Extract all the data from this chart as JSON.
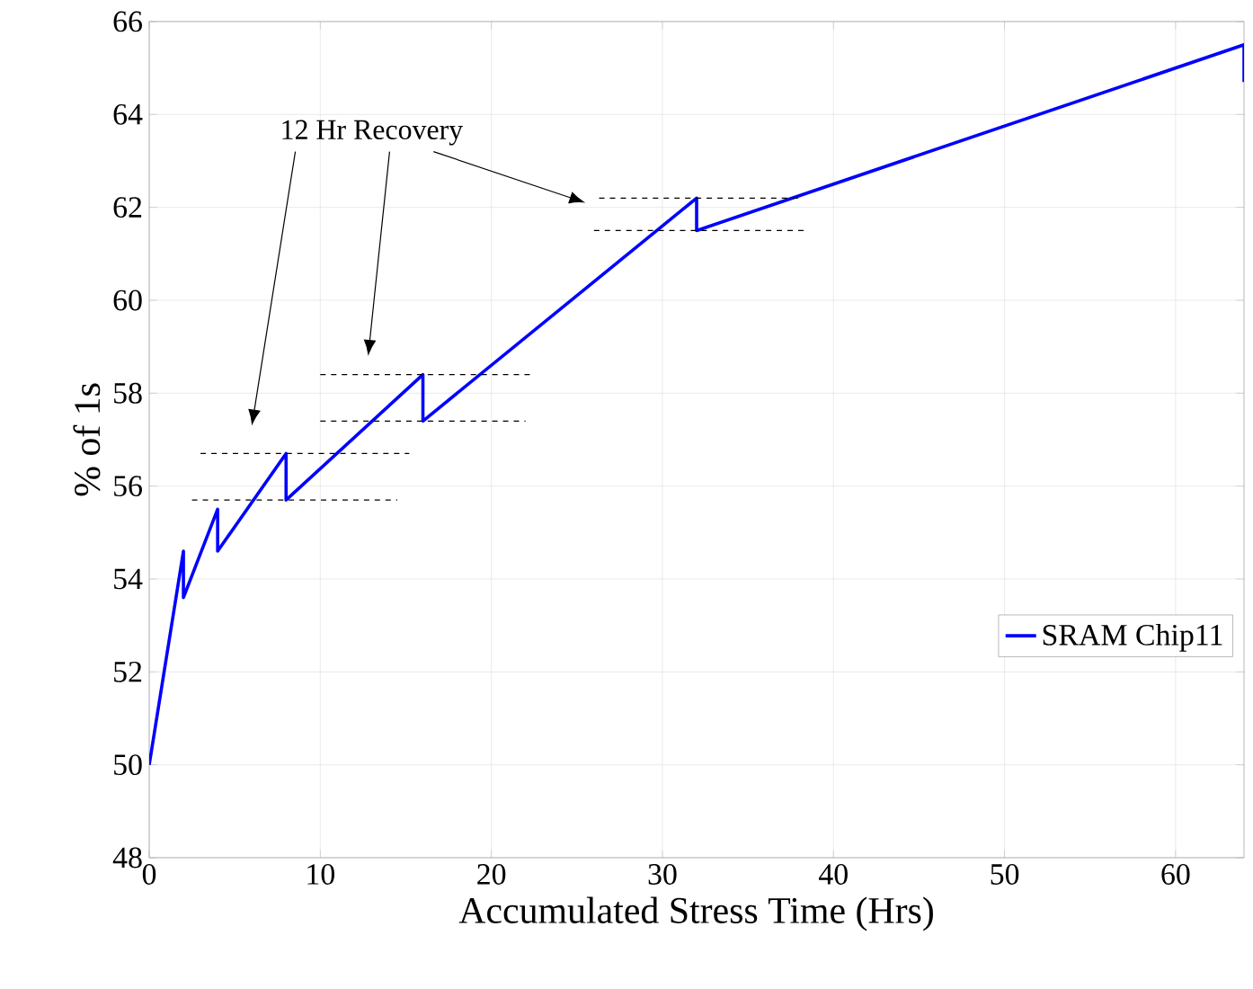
{
  "chart_data": {
    "type": "line",
    "xlabel": "Accumulated Stress Time (Hrs)",
    "ylabel": "% of 1s",
    "annotations": [
      "12 Hr Recovery"
    ],
    "series": [
      {
        "name": "SRAM Chip11",
        "color": "#0000ff",
        "x": [
          0,
          2,
          2,
          4,
          4,
          8,
          8,
          16,
          16,
          32,
          32,
          64,
          64
        ],
        "values": [
          50,
          54.6,
          53.6,
          55.5,
          54.6,
          56.7,
          55.7,
          58.4,
          57.4,
          62.2,
          61.5,
          65.5,
          64.7
        ]
      },
      {
        "color": "#000000",
        "line_style": "dashed",
        "x": [
          3,
          15.2
        ],
        "values": [
          56.7,
          56.7
        ]
      },
      {
        "color": "#000000",
        "line_style": "dashed",
        "x": [
          2.5,
          14.5
        ],
        "values": [
          55.7,
          55.7
        ]
      },
      {
        "color": "#000000",
        "line_style": "dashed",
        "x": [
          10,
          22.3
        ],
        "values": [
          58.4,
          58.4
        ]
      },
      {
        "color": "#000000",
        "line_style": "dashed",
        "x": [
          10,
          22
        ],
        "values": [
          57.4,
          57.4
        ]
      },
      {
        "color": "#000000",
        "line_style": "dashed",
        "x": [
          26.3,
          38.2
        ],
        "values": [
          62.2,
          62.2
        ]
      },
      {
        "color": "#000000",
        "line_style": "dashed",
        "x": [
          26,
          38.5
        ],
        "values": [
          61.5,
          61.5
        ]
      }
    ],
    "xlim": [
      0,
      64
    ],
    "ylim": [
      48,
      66
    ],
    "xticks": [
      0,
      10,
      20,
      30,
      40,
      50,
      60
    ],
    "yticks": [
      48,
      50,
      52,
      54,
      56,
      58,
      60,
      62,
      64,
      66
    ],
    "grid": true,
    "legend": "bottom right",
    "marker": "none",
    "line_style": "solid"
  }
}
